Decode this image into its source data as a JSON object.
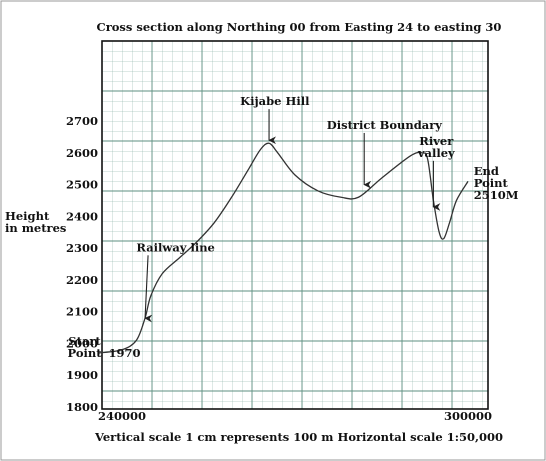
{
  "chart_data": {
    "type": "line",
    "title": "Cross section along Northing 00 from Easting 24 to easting 30",
    "ylabel": [
      "Height",
      "in metres"
    ],
    "footer": "Vertical scale 1 cm represents 100 m  Horizontal scale 1:50,000",
    "xlim": [
      240000,
      300000
    ],
    "ylim": [
      1800,
      2800
    ],
    "y_ticks": [
      1800,
      1900,
      2000,
      2100,
      2200,
      2300,
      2400,
      2500,
      2600,
      2700
    ],
    "x_ticks": [
      {
        "value": 240000,
        "label": "240000"
      },
      {
        "value": 300000,
        "label": "300000"
      }
    ],
    "profile": [
      {
        "x": 236000,
        "y": 1970
      },
      {
        "x": 240000,
        "y": 1980
      },
      {
        "x": 242500,
        "y": 2010
      },
      {
        "x": 244000,
        "y": 2080
      },
      {
        "x": 245000,
        "y": 2150
      },
      {
        "x": 247000,
        "y": 2220
      },
      {
        "x": 250000,
        "y": 2270
      },
      {
        "x": 253000,
        "y": 2320
      },
      {
        "x": 256000,
        "y": 2380
      },
      {
        "x": 259000,
        "y": 2460
      },
      {
        "x": 262000,
        "y": 2550
      },
      {
        "x": 264000,
        "y": 2610
      },
      {
        "x": 265500,
        "y": 2630
      },
      {
        "x": 267000,
        "y": 2600
      },
      {
        "x": 270000,
        "y": 2530
      },
      {
        "x": 274000,
        "y": 2480
      },
      {
        "x": 278000,
        "y": 2460
      },
      {
        "x": 281000,
        "y": 2460
      },
      {
        "x": 285000,
        "y": 2520
      },
      {
        "x": 290000,
        "y": 2590
      },
      {
        "x": 292000,
        "y": 2600
      },
      {
        "x": 293000,
        "y": 2580
      },
      {
        "x": 294000,
        "y": 2450
      },
      {
        "x": 295000,
        "y": 2350
      },
      {
        "x": 295800,
        "y": 2330
      },
      {
        "x": 296800,
        "y": 2380
      },
      {
        "x": 298000,
        "y": 2450
      },
      {
        "x": 300000,
        "y": 2510
      }
    ],
    "annotations": [
      {
        "id": "kijabe-hill",
        "lines": [
          "Kijabe Hill"
        ],
        "x": 265500,
        "y": 2630,
        "arrow": "down",
        "label_x": 266500,
        "label_y": 2750,
        "anchor": "middle"
      },
      {
        "id": "district-boundary",
        "lines": [
          "District Boundary"
        ],
        "x": 282000,
        "y": 2490,
        "arrow": "down",
        "label_x": 285500,
        "label_y": 2675,
        "anchor": "middle"
      },
      {
        "id": "river-valley",
        "lines": [
          "River",
          "valley"
        ],
        "x": 294000,
        "y": 2420,
        "arrow": "down",
        "label_x": 294500,
        "label_y": 2625,
        "anchor": "middle"
      },
      {
        "id": "railway-line",
        "lines": [
          "Railway line"
        ],
        "x": 244000,
        "y": 2070,
        "arrow": "down",
        "label_x": 242500,
        "label_y": 2290,
        "anchor": "start"
      },
      {
        "id": "end-point",
        "lines": [
          "End",
          "Point",
          "2510M"
        ],
        "x": 300000,
        "y": 2510,
        "arrow": "none",
        "label_x": 301000,
        "label_y": 2530,
        "anchor": "start"
      },
      {
        "id": "start-point",
        "lines": [
          "Start",
          "Point"
        ],
        "x": 236000,
        "y": 1970,
        "arrow": "none",
        "label_x": 233500,
        "label_y": 1995,
        "anchor": "middle",
        "value_label": "1970"
      }
    ]
  }
}
